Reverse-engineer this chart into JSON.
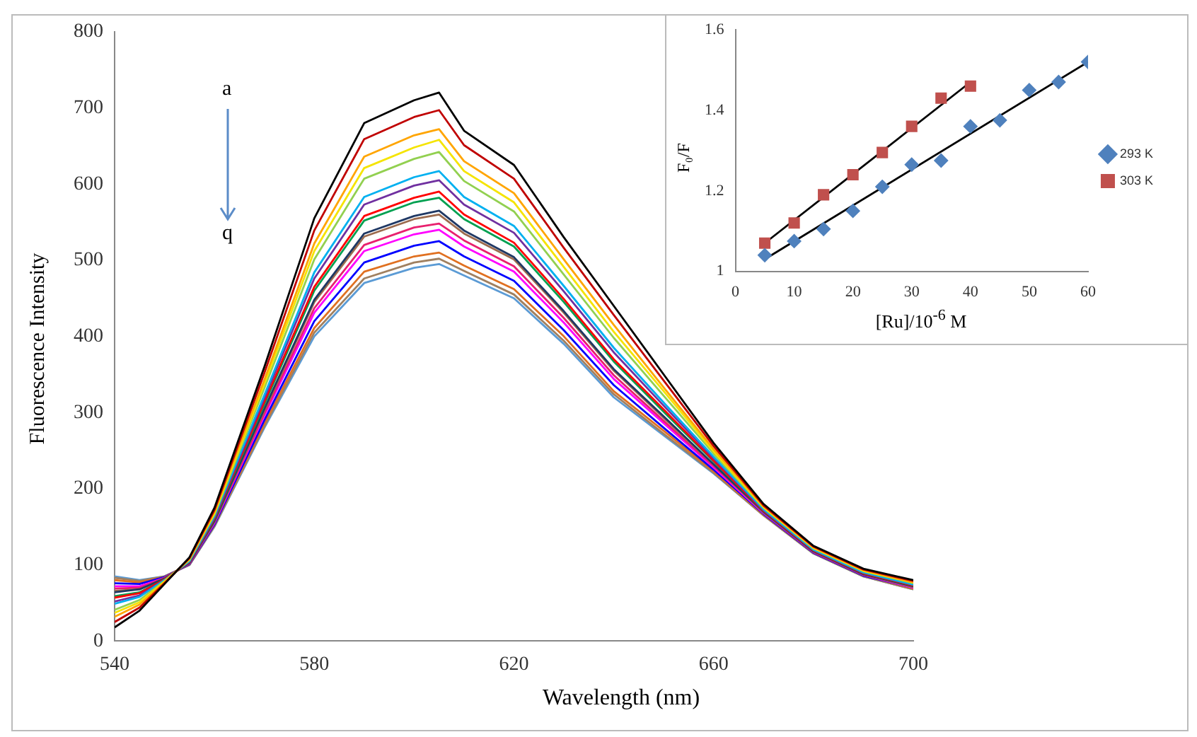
{
  "chart_data": [
    {
      "type": "line",
      "xlabel": "Wavelength (nm)",
      "ylabel": "Fluorescence Intensity",
      "annotations": [
        "a",
        "q"
      ],
      "x": [
        540,
        545,
        550,
        555,
        560,
        570,
        580,
        590,
        600,
        605,
        610,
        620,
        630,
        640,
        650,
        660,
        670,
        680,
        690,
        700
      ],
      "xlim": [
        540,
        700
      ],
      "xticks": [
        540,
        580,
        620,
        660,
        700
      ],
      "ylim": [
        0,
        800
      ],
      "yticks": [
        0,
        100,
        200,
        300,
        400,
        500,
        600,
        700,
        800
      ],
      "marker": "none",
      "series": [
        {
          "color": "#000000",
          "values": [
            18,
            40,
            75,
            110,
            175,
            360,
            555,
            680,
            710,
            720,
            670,
            625,
            530,
            440,
            350,
            260,
            180,
            125,
            95,
            80
          ]
        },
        {
          "color": "#c00000",
          "values": [
            25,
            44,
            76,
            109,
            172,
            352,
            539,
            659,
            688,
            697,
            651,
            607,
            516,
            428,
            342,
            256,
            178,
            124,
            94,
            79
          ]
        },
        {
          "color": "#ffa500",
          "values": [
            32,
            48,
            77,
            108,
            170,
            343,
            522,
            636,
            664,
            672,
            630,
            588,
            501,
            415,
            333,
            252,
            177,
            123,
            93,
            77
          ]
        },
        {
          "color": "#f5e400",
          "values": [
            37,
            51,
            78,
            107,
            168,
            338,
            512,
            621,
            648,
            658,
            617,
            576,
            491,
            406,
            328,
            249,
            176,
            122,
            92,
            77
          ]
        },
        {
          "color": "#92d050",
          "values": [
            41,
            54,
            79,
            107,
            166,
            332,
            501,
            607,
            633,
            642,
            604,
            564,
            481,
            398,
            322,
            246,
            175,
            122,
            92,
            76
          ]
        },
        {
          "color": "#00b0f0",
          "values": [
            49,
            58,
            80,
            105,
            164,
            323,
            484,
            583,
            609,
            617,
            583,
            545,
            466,
            385,
            313,
            242,
            173,
            120,
            90,
            74
          ]
        },
        {
          "color": "#7030a0",
          "values": [
            52,
            60,
            80,
            105,
            162,
            319,
            476,
            573,
            598,
            605,
            573,
            536,
            459,
            379,
            309,
            240,
            172,
            120,
            90,
            74
          ]
        },
        {
          "color": "#ff0000",
          "values": [
            57,
            63,
            81,
            104,
            161,
            314,
            465,
            558,
            582,
            590,
            560,
            523,
            449,
            370,
            304,
            237,
            171,
            119,
            89,
            73
          ]
        },
        {
          "color": "#00a050",
          "values": [
            59,
            64,
            81,
            104,
            160,
            311,
            460,
            552,
            576,
            582,
            554,
            518,
            445,
            367,
            301,
            236,
            171,
            119,
            89,
            73
          ]
        },
        {
          "color": "#1f3864",
          "values": [
            64,
            68,
            82,
            103,
            158,
            305,
            448,
            535,
            558,
            565,
            539,
            504,
            433,
            357,
            295,
            232,
            170,
            118,
            88,
            72
          ]
        },
        {
          "color": "#9c6b4e",
          "values": [
            66,
            68,
            82,
            103,
            157,
            303,
            445,
            531,
            554,
            560,
            535,
            501,
            431,
            355,
            293,
            232,
            169,
            118,
            88,
            71
          ]
        },
        {
          "color": "#e8206e",
          "values": [
            69,
            70,
            83,
            102,
            156,
            299,
            437,
            520,
            543,
            548,
            526,
            492,
            424,
            349,
            289,
            230,
            169,
            117,
            87,
            71
          ]
        },
        {
          "color": "#ff00ff",
          "values": [
            72,
            72,
            83,
            102,
            155,
            296,
            431,
            512,
            534,
            540,
            518,
            485,
            418,
            344,
            286,
            228,
            168,
            117,
            87,
            70
          ]
        },
        {
          "color": "#0000ff",
          "values": [
            76,
            75,
            84,
            101,
            153,
            290,
            420,
            497,
            519,
            525,
            505,
            473,
            408,
            336,
            280,
            225,
            167,
            116,
            86,
            70
          ]
        },
        {
          "color": "#e07020",
          "values": [
            80,
            77,
            84,
            101,
            152,
            286,
            411,
            485,
            505,
            510,
            493,
            462,
            400,
            328,
            276,
            223,
            166,
            116,
            86,
            69
          ]
        },
        {
          "color": "#a08060",
          "values": [
            83,
            79,
            85,
            100,
            151,
            282,
            405,
            476,
            497,
            502,
            486,
            455,
            394,
            324,
            272,
            221,
            165,
            115,
            85,
            68
          ]
        },
        {
          "color": "#5b9bd5",
          "values": [
            85,
            80,
            85,
            100,
            150,
            280,
            400,
            470,
            490,
            495,
            480,
            450,
            390,
            320,
            270,
            220,
            165,
            115,
            85,
            68
          ]
        }
      ]
    },
    {
      "type": "scatter",
      "xlabel": "[Ru]/10$^{-6}$ M",
      "ylabel": "F₀/F",
      "legend": "right",
      "xlim": [
        0,
        60
      ],
      "xticks": [
        0,
        10,
        20,
        30,
        40,
        50,
        60
      ],
      "ylim": [
        1,
        1.6
      ],
      "yticks": [
        1,
        1.2,
        1.4,
        1.6
      ],
      "series": [
        {
          "name": "293 K",
          "color": "#4f81bd",
          "marker": "diamond",
          "x": [
            5,
            10,
            15,
            20,
            25,
            30,
            35,
            40,
            45,
            50,
            55,
            60
          ],
          "values": [
            1.04,
            1.075,
            1.105,
            1.15,
            1.21,
            1.265,
            1.275,
            1.36,
            1.375,
            1.45,
            1.47,
            1.52
          ]
        },
        {
          "name": "303 K",
          "color": "#c0504d",
          "marker": "square",
          "x": [
            5,
            10,
            15,
            20,
            25,
            30,
            35,
            40
          ],
          "values": [
            1.07,
            1.12,
            1.19,
            1.24,
            1.295,
            1.36,
            1.43,
            1.46
          ]
        },
        {
          "type": "line",
          "color": "#000000",
          "marker": "none",
          "x": [
            5,
            60
          ],
          "values": [
            1.03,
            1.52
          ]
        },
        {
          "type": "line",
          "color": "#000000",
          "marker": "none",
          "x": [
            5,
            40
          ],
          "values": [
            1.07,
            1.47
          ]
        }
      ]
    }
  ]
}
